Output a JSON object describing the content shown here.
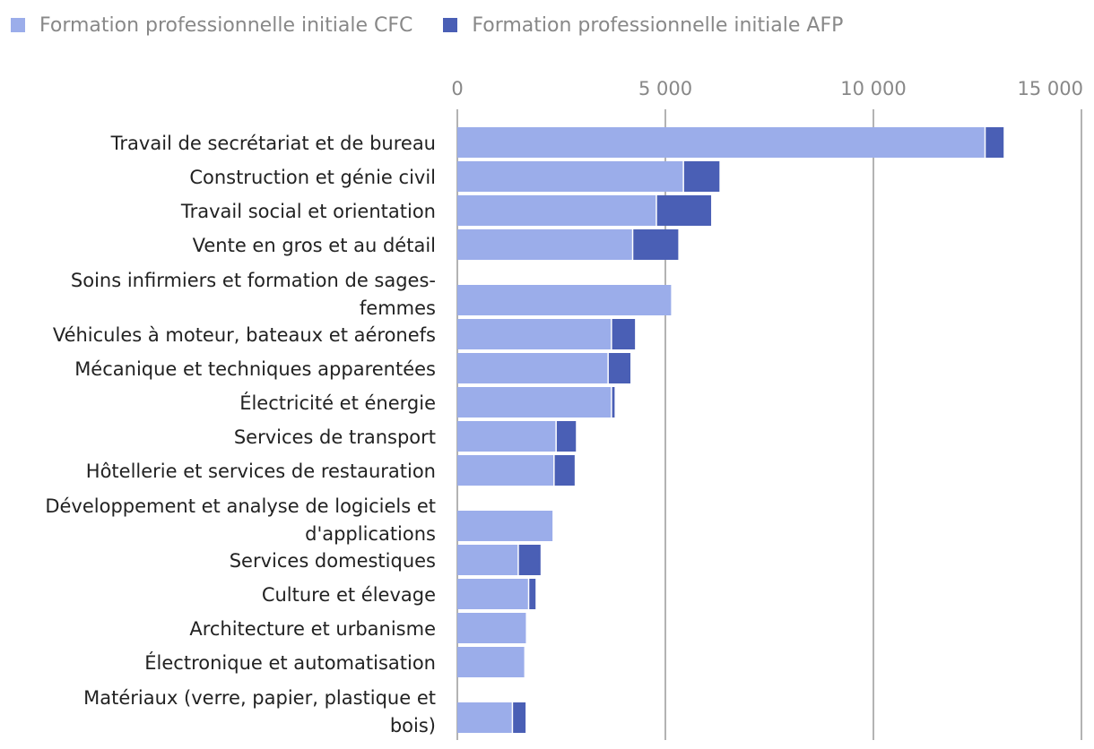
{
  "chart_data": {
    "type": "bar",
    "orientation": "horizontal",
    "stacked": true,
    "categories": [
      "Travail de secrétariat et de bureau",
      "Construction et génie civil",
      "Travail social et orientation",
      "Vente en gros et au détail",
      "Soins infirmiers et formation de sages-femmes",
      "Véhicules à moteur, bateaux et aéronefs",
      "Mécanique et techniques apparentées",
      "Électricité et énergie",
      "Services de transport",
      "Hôtellerie et services de restauration",
      "Développement et analyse de logiciels et d'applications",
      "Services domestiques",
      "Culture et élevage",
      "Architecture et urbanisme",
      "Électronique et automatisation",
      "Matériaux (verre, papier, plastique et bois)"
    ],
    "category_label_lines": [
      [
        "Travail de secrétariat et de bureau"
      ],
      [
        "Construction et génie civil"
      ],
      [
        "Travail social et orientation"
      ],
      [
        "Vente en gros et au détail"
      ],
      [
        "Soins infirmiers et formation de sages-",
        "femmes"
      ],
      [
        "Véhicules à moteur, bateaux et aéronefs"
      ],
      [
        "Mécanique et techniques apparentées"
      ],
      [
        "Électricité et énergie"
      ],
      [
        "Services de transport"
      ],
      [
        "Hôtellerie et services de restauration"
      ],
      [
        "Développement et analyse de logiciels et",
        "d'applications"
      ],
      [
        "Services domestiques"
      ],
      [
        "Culture et élevage"
      ],
      [
        "Architecture et urbanisme"
      ],
      [
        "Électronique et automatisation"
      ],
      [
        "Matériaux (verre, papier, plastique et",
        "bois)"
      ]
    ],
    "series": [
      {
        "name": "Formation professionnelle initiale CFC",
        "color": "#9badea",
        "values": [
          12700,
          5450,
          4800,
          4230,
          5170,
          3720,
          3640,
          3720,
          2390,
          2340,
          2320,
          1480,
          1730,
          1680,
          1640,
          1340
        ]
      },
      {
        "name": "Formation professionnelle initiale AFP",
        "color": "#4a5fb5",
        "values": [
          430,
          850,
          1300,
          1080,
          0,
          550,
          520,
          60,
          460,
          480,
          0,
          520,
          150,
          0,
          0,
          300
        ]
      }
    ],
    "xlim": [
      0,
      15000
    ],
    "x_ticks": [
      0,
      5000,
      10000,
      15000
    ],
    "x_tick_labels": [
      "0",
      "5 000",
      "10 000",
      "15 000"
    ],
    "axis_position": "top",
    "grid": true,
    "legend_position": "top-left"
  }
}
